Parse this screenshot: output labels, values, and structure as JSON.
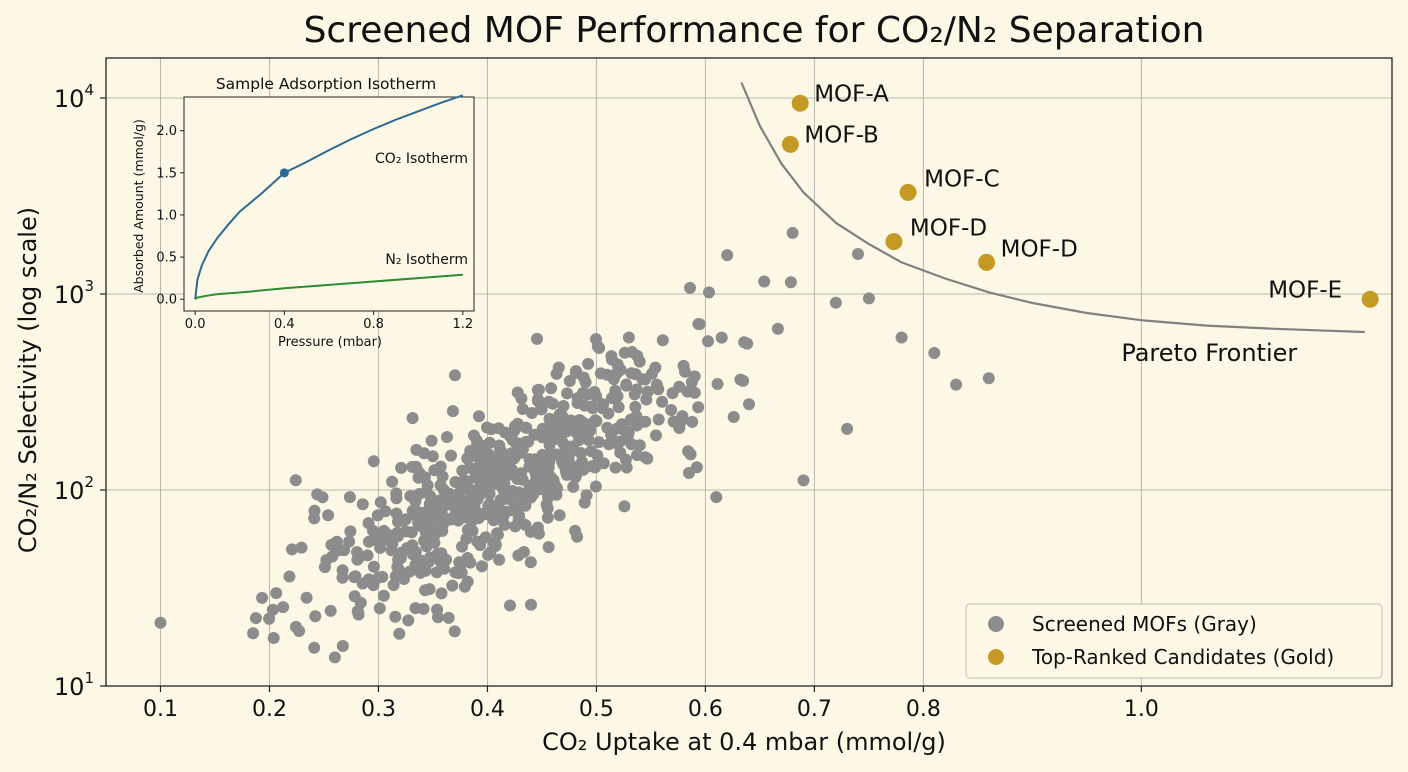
{
  "chart_data": [
    {
      "type": "scatter",
      "title": "Screened MOF Performance for CO₂/N₂ Separation",
      "xlabel": "CO₂ Uptake at 0.4 mbar (mmol/g)",
      "ylabel": "CO₂/N₂ Selectivity (log scale)",
      "xlim": [
        0.05,
        1.23
      ],
      "ylim": [
        10,
        16000
      ],
      "y_scale": "log",
      "grid": true,
      "x_ticks": [
        0.1,
        0.2,
        0.3,
        0.4,
        0.5,
        0.6,
        0.7,
        0.8,
        1.0
      ],
      "x_tick_labels": [
        "0.1",
        "0.2",
        "0.3",
        "0.4",
        "0.5",
        "0.6",
        "0.7",
        "0.8",
        "1.0"
      ],
      "y_ticks": [
        10,
        100,
        1000,
        10000
      ],
      "y_tick_labels": [
        {
          "base": "10",
          "exp": "1"
        },
        {
          "base": "10",
          "exp": "2"
        },
        {
          "base": "10",
          "exp": "3"
        },
        {
          "base": "10",
          "exp": "4"
        }
      ],
      "colors": {
        "screened": "#8c8c8c",
        "candidates": "#c49a24",
        "frontier": "#808080",
        "grid": "#b7b7b0"
      },
      "legend_placement": "bottom-right",
      "legend": [
        "Screened MOFs (Gray)",
        "Top-Ranked Candidates (Gold)"
      ],
      "screened": {
        "count": 650,
        "center": [
          0.42,
          115
        ],
        "notable_points": [
          [
            0.1,
            21
          ],
          [
            0.26,
            14
          ],
          [
            0.37,
            19
          ],
          [
            0.44,
            26
          ],
          [
            0.61,
            92
          ],
          [
            0.69,
            112
          ],
          [
            0.73,
            205
          ],
          [
            0.81,
            500
          ],
          [
            0.83,
            345
          ],
          [
            0.86,
            372
          ],
          [
            0.68,
            2050
          ],
          [
            0.62,
            1580
          ],
          [
            0.74,
            1600
          ],
          [
            0.78,
            600
          ],
          [
            0.75,
            950
          ]
        ]
      },
      "candidates": [
        {
          "label": "MOF-A",
          "x": 0.687,
          "y": 9400
        },
        {
          "label": "MOF-B",
          "x": 0.678,
          "y": 5800
        },
        {
          "label": "MOF-C",
          "x": 0.786,
          "y": 3300
        },
        {
          "label": "MOF-D",
          "x": 0.773,
          "y": 1850
        },
        {
          "label": "MOF-D",
          "x": 0.858,
          "y": 1450
        },
        {
          "label": "MOF-E",
          "x": 1.21,
          "y": 940
        }
      ],
      "frontier": {
        "label": "Pareto Frontier",
        "x": [
          0.633,
          0.65,
          0.67,
          0.69,
          0.72,
          0.75,
          0.78,
          0.82,
          0.86,
          0.9,
          0.95,
          1.0,
          1.06,
          1.12,
          1.17,
          1.205
        ],
        "y": [
          12000,
          7200,
          4600,
          3300,
          2300,
          1800,
          1450,
          1200,
          1020,
          900,
          800,
          735,
          690,
          665,
          650,
          640
        ]
      }
    },
    {
      "type": "line",
      "title": "Sample Adsorption Isotherm",
      "xlabel": "Pressure (mbar)",
      "ylabel": "Absorbed Amount (mmol/g)",
      "xlim": [
        -0.05,
        1.25
      ],
      "ylim": [
        -0.14,
        2.4
      ],
      "x_ticks": [
        0.0,
        0.4,
        0.8,
        1.2
      ],
      "x_tick_labels": [
        "0.0",
        "0.4",
        "0.8",
        "1.2"
      ],
      "y_ticks": [
        0.0,
        0.5,
        1.0,
        1.5,
        2.0
      ],
      "y_tick_labels": [
        "0.0",
        "0.5",
        "1.0",
        "1.5",
        "2.0"
      ],
      "colors": {
        "co2": "#2b6a94",
        "n2": "#2e8b2e"
      },
      "series": [
        {
          "name": "CO₂ Isotherm",
          "x": [
            0.0,
            0.01,
            0.03,
            0.06,
            0.1,
            0.15,
            0.2,
            0.3,
            0.4,
            0.5,
            0.6,
            0.7,
            0.8,
            0.9,
            1.0,
            1.1,
            1.2
          ],
          "values": [
            0.0,
            0.23,
            0.4,
            0.57,
            0.73,
            0.89,
            1.04,
            1.26,
            1.5,
            1.63,
            1.77,
            1.9,
            2.02,
            2.13,
            2.23,
            2.33,
            2.42
          ]
        },
        {
          "name": "N₂ Isotherm",
          "x": [
            0.0,
            0.01,
            0.05,
            0.1,
            0.2,
            0.4,
            0.6,
            0.8,
            1.0,
            1.2
          ],
          "values": [
            0.0,
            0.02,
            0.04,
            0.06,
            0.08,
            0.13,
            0.17,
            0.21,
            0.25,
            0.29
          ]
        }
      ],
      "marker": {
        "x": 0.4,
        "y": 1.5
      }
    }
  ]
}
